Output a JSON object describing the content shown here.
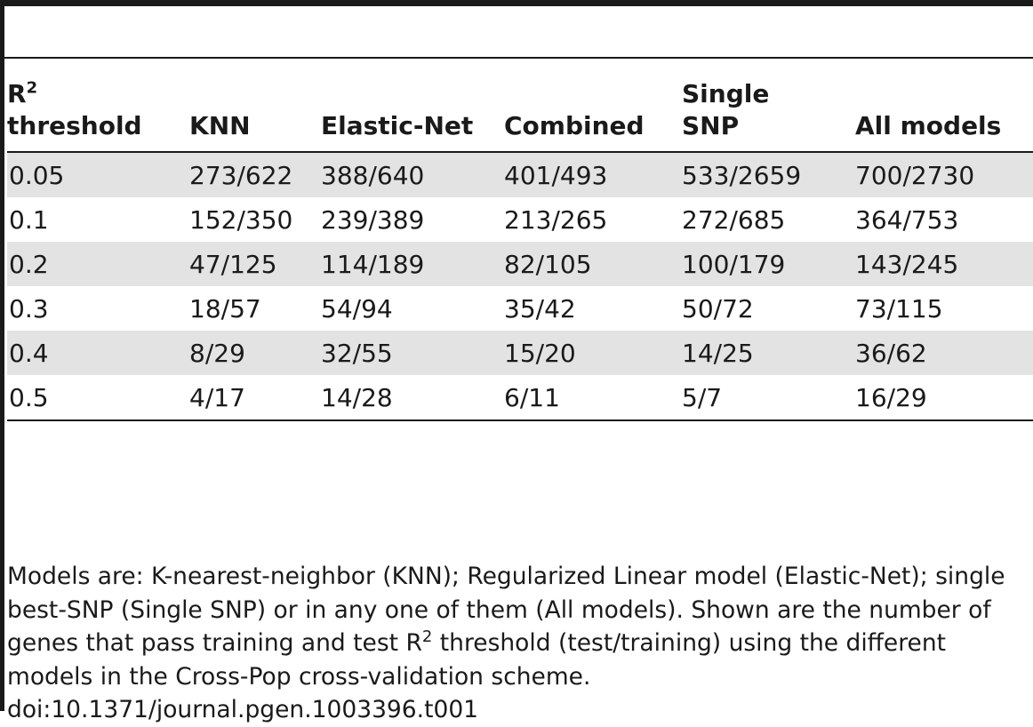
{
  "table": {
    "headers": {
      "threshold_base": "R",
      "threshold_sup": "2",
      "threshold_rest": "threshold",
      "knn": "KNN",
      "elastic": "Elastic-Net",
      "combined": "Combined",
      "single_1": "Single",
      "single_2": "SNP",
      "all": "All models"
    },
    "rows": [
      [
        "0.05",
        "273/622",
        "388/640",
        "401/493",
        "533/2659",
        "700/2730"
      ],
      [
        "0.1",
        "152/350",
        "239/389",
        "213/265",
        "272/685",
        "364/753"
      ],
      [
        "0.2",
        "47/125",
        "114/189",
        "82/105",
        "100/179",
        "143/245"
      ],
      [
        "0.3",
        "18/57",
        "54/94",
        "35/42",
        "50/72",
        "73/115"
      ],
      [
        "0.4",
        "8/29",
        "32/55",
        "15/20",
        "14/25",
        "36/62"
      ],
      [
        "0.5",
        "4/17",
        "14/28",
        "6/11",
        "5/7",
        "16/29"
      ]
    ]
  },
  "footnote": {
    "part1": "Models are: K-nearest-neighbor (KNN); Regularized Linear model (Elastic-Net); single best-SNP (Single SNP) or in any one of them (All models). Shown are the number of genes that pass training and test R",
    "sup": "2",
    "part2": " threshold (test/training) using the different models in the Cross-Pop cross-validation scheme.",
    "doi": "doi:10.1371/journal.pgen.1003396.t001"
  }
}
